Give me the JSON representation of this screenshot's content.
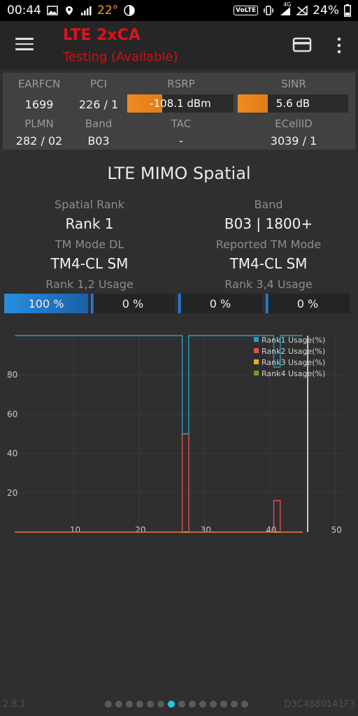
{
  "status_bar": {
    "time": "00:44",
    "temperature": "22°",
    "network_badge": "VoLTE",
    "network_type": "4G",
    "battery": "24%",
    "icons": [
      "gallery-icon",
      "location-icon",
      "signal-icon",
      "weather-icon",
      "vibrate-icon",
      "no-signal-icon",
      "battery-icon"
    ]
  },
  "app_bar": {
    "title": "LTE 2xCA",
    "subtitle": "Testing (Available)",
    "title_color": "#e0121b",
    "icons": [
      "menu-icon",
      "card-icon",
      "more-vert-icon"
    ]
  },
  "cell_info": {
    "headers": {
      "earfcn": "EARFCN",
      "pci": "PCI",
      "rsrp": "RSRP",
      "sinr": "SINR",
      "plmn": "PLMN",
      "band": "Band",
      "tac": "TAC",
      "ecellid": "ECellID"
    },
    "values": {
      "earfcn": "1699",
      "pci": "226 / 1",
      "rsrp": "-108.1 dBm",
      "sinr": "5.6 dB",
      "plmn": "282 / 02",
      "band": "B03",
      "tac": "-",
      "ecellid": "3039 / 1"
    },
    "rsrp_level": 0.33,
    "sinr_level": 0.27,
    "meter_color": "#f08a20"
  },
  "mimo": {
    "title": "LTE MIMO Spatial",
    "spatial_rank_label": "Spatial Rank",
    "spatial_rank": "Rank 1",
    "band_label": "Band",
    "band": "B03 | 1800+",
    "tm_mode_dl_label": "TM Mode DL",
    "tm_mode_dl": "TM4-CL SM",
    "reported_tm_label": "Reported TM Mode",
    "reported_tm": "TM4-CL SM",
    "rank12_label": "Rank 1,2 Usage",
    "rank34_label": "Rank 3,4 Usage",
    "usage_bars": [
      {
        "text": "100 %",
        "value": 100
      },
      {
        "text": "0 %",
        "value": 0
      },
      {
        "text": "0 %",
        "value": 0
      },
      {
        "text": "0 %",
        "value": 0
      }
    ],
    "usage_color": "#2a8de0"
  },
  "chart_data": {
    "type": "line",
    "title": "",
    "xlabel": "",
    "ylabel": "",
    "x_ticks": [
      10,
      20,
      30,
      40,
      50
    ],
    "y_ticks": [
      20,
      40,
      60,
      80
    ],
    "xlim": [
      0,
      52
    ],
    "ylim": [
      0,
      100
    ],
    "grid": true,
    "legend_position": "top-right",
    "series": [
      {
        "name": "Rank1 Usage(%)",
        "color": "#1fa0c8",
        "points": [
          [
            1,
            100
          ],
          [
            26.6,
            100
          ],
          [
            26.6,
            50
          ],
          [
            27.6,
            50
          ],
          [
            27.6,
            100
          ],
          [
            40.6,
            100
          ],
          [
            40.6,
            84
          ],
          [
            41.6,
            84
          ],
          [
            41.6,
            100
          ],
          [
            45,
            100
          ]
        ]
      },
      {
        "name": "Rank2 Usage(%)",
        "color": "#e05050",
        "points": [
          [
            1,
            0
          ],
          [
            26.6,
            0
          ],
          [
            26.6,
            50
          ],
          [
            27.6,
            50
          ],
          [
            27.6,
            0
          ],
          [
            40.6,
            0
          ],
          [
            40.6,
            16
          ],
          [
            41.6,
            16
          ],
          [
            41.6,
            0
          ],
          [
            45,
            0
          ]
        ]
      },
      {
        "name": "Rank3 Usage(%)",
        "color": "#e8b020",
        "points": [
          [
            1,
            0
          ],
          [
            45,
            0
          ]
        ]
      },
      {
        "name": "Rank4 Usage(%)",
        "color": "#6aa020",
        "points": [
          [
            1,
            0
          ],
          [
            45,
            0
          ]
        ]
      }
    ],
    "cursor_x": 45.8
  },
  "footer": {
    "version": "2.8.1",
    "device_id": "D3C48801A1F3",
    "page_count": 14,
    "active_page": 6
  }
}
